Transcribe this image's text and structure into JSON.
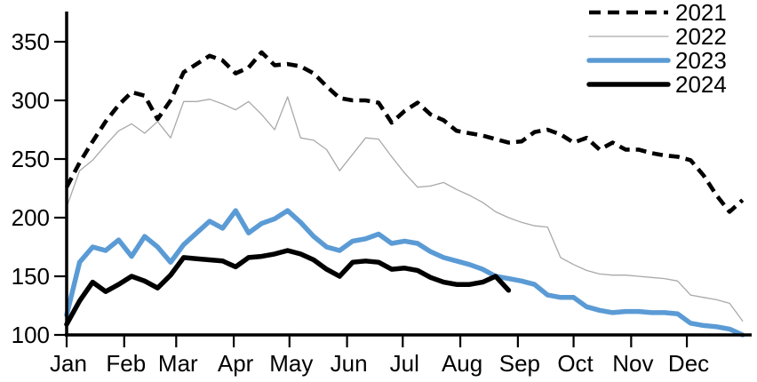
{
  "chart_data": {
    "type": "line",
    "title": "",
    "xlabel": "",
    "ylabel": "",
    "grid": false,
    "background": "#ffffff",
    "axis_color": "#000000",
    "x_axis": {
      "unit": "month",
      "tick_labels": [
        "Jan",
        "Feb",
        "Mar",
        "Apr",
        "May",
        "Jun",
        "Jul",
        "Aug",
        "Sep",
        "Oct",
        "Nov",
        "Dec"
      ],
      "tick_days": [
        1,
        32,
        60,
        91,
        121,
        152,
        182,
        213,
        244,
        274,
        305,
        335
      ]
    },
    "y_axis": {
      "ticks": [
        100,
        150,
        200,
        250,
        300,
        350
      ],
      "range_min": 100,
      "range_max": 350
    },
    "x_days": [
      1,
      8,
      15,
      22,
      29,
      36,
      43,
      50,
      57,
      64,
      71,
      78,
      85,
      92,
      99,
      106,
      113,
      120,
      127,
      134,
      141,
      148,
      155,
      162,
      169,
      176,
      183,
      190,
      197,
      204,
      211,
      218,
      225,
      232,
      239,
      246,
      253,
      260,
      267,
      274,
      281,
      288,
      295,
      302,
      309,
      316,
      323,
      330,
      337,
      344,
      351,
      358,
      365
    ],
    "legend": {
      "position": "top-right",
      "entries": [
        "2021",
        "2022",
        "2023",
        "2024"
      ]
    },
    "series": [
      {
        "name": "2021",
        "color": "#000000",
        "line_style": "dashed",
        "line_width": 4.6,
        "values": [
          226,
          247,
          265,
          282,
          296,
          307,
          304,
          284,
          300,
          324,
          331,
          338,
          334,
          323,
          328,
          341,
          330,
          331,
          329,
          323,
          312,
          302,
          300,
          300,
          298,
          281,
          291,
          298,
          288,
          283,
          274,
          272,
          270,
          267,
          264,
          265,
          273,
          275,
          271,
          264,
          268,
          258,
          264,
          258,
          258,
          255,
          253,
          252,
          249,
          236,
          219,
          205,
          215
        ]
      },
      {
        "name": "2022",
        "color": "#a9a9a9",
        "line_style": "solid",
        "line_width": 1.3,
        "values": [
          209,
          240,
          249,
          262,
          274,
          280,
          272,
          282,
          268,
          299,
          299,
          301,
          297,
          292,
          299,
          288,
          275,
          303,
          268,
          266,
          258,
          240,
          254,
          268,
          267,
          252,
          238,
          226,
          227,
          230,
          224,
          219,
          213,
          205,
          200,
          196,
          193,
          192,
          166,
          160,
          155,
          152,
          151,
          151,
          150,
          149,
          148,
          146,
          134,
          132,
          130,
          127,
          112
        ]
      },
      {
        "name": "2023",
        "color": "#5b9bd5",
        "line_style": "solid",
        "line_width": 5.5,
        "values": [
          117,
          162,
          175,
          172,
          181,
          167,
          184,
          175,
          162,
          177,
          187,
          197,
          191,
          206,
          187,
          195,
          199,
          206,
          196,
          184,
          175,
          172,
          180,
          182,
          186,
          178,
          180,
          178,
          171,
          166,
          163,
          160,
          156,
          150,
          148,
          146,
          143,
          134,
          132,
          132,
          124,
          121,
          119,
          120,
          120,
          119,
          119,
          118,
          110,
          108,
          107,
          105,
          100
        ]
      },
      {
        "name": "2024",
        "color": "#000000",
        "line_style": "solid",
        "line_width": 5.5,
        "values": [
          109,
          129,
          145,
          137,
          143,
          150,
          146,
          140,
          151,
          166,
          165,
          164,
          163,
          158,
          166,
          167,
          169,
          172,
          169,
          164,
          156,
          150,
          162,
          163,
          162,
          156,
          157,
          155,
          149,
          145,
          143,
          143,
          145,
          150,
          138
        ]
      }
    ]
  }
}
